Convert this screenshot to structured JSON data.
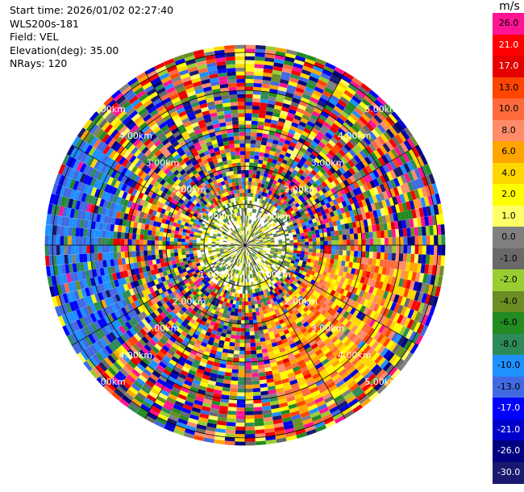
{
  "info": {
    "start_time": "Start time: 2026/01/02 02:27:40",
    "instrument": "WLS200s-181",
    "field": "Field: VEL",
    "elevation": "Elevation(deg): 35.00",
    "nrays": "NRays: 120"
  },
  "chart_data": {
    "type": "heatmap",
    "projection": "polar-ppi",
    "rays": 120,
    "range_rings_km": [
      1,
      2,
      3,
      4,
      5
    ],
    "range_ring_labels": [
      "1.00km",
      "2.00km",
      "3.00km",
      "4.00km",
      "5.00km"
    ],
    "colorbar": {
      "unit": "m/s",
      "bins": [
        {
          "label": "26.0",
          "color": "#ff1493"
        },
        {
          "label": "21.0",
          "color": "#ff0000"
        },
        {
          "label": "17.0",
          "color": "#e60000"
        },
        {
          "label": "13.0",
          "color": "#ff4500"
        },
        {
          "label": "10.0",
          "color": "#ff6a3c"
        },
        {
          "label": "8.0",
          "color": "#ff8c69"
        },
        {
          "label": "6.0",
          "color": "#ffa500"
        },
        {
          "label": "4.0",
          "color": "#ffd700"
        },
        {
          "label": "2.0",
          "color": "#ffff00"
        },
        {
          "label": "1.0",
          "color": "#ffff66"
        },
        {
          "label": "0.0",
          "color": "#808080"
        },
        {
          "label": "-1.0",
          "color": "#696969"
        },
        {
          "label": "-2.0",
          "color": "#9acd32"
        },
        {
          "label": "-4.0",
          "color": "#6b8e23"
        },
        {
          "label": "-6.0",
          "color": "#228b22"
        },
        {
          "label": "-8.0",
          "color": "#2e8b57"
        },
        {
          "label": "-10.0",
          "color": "#1e90ff"
        },
        {
          "label": "-13.0",
          "color": "#4169e1"
        },
        {
          "label": "-17.0",
          "color": "#0000ff"
        },
        {
          "label": "-21.0",
          "color": "#0000cd"
        },
        {
          "label": "-26.0",
          "color": "#000080"
        },
        {
          "label": "-30.0",
          "color": "#191970"
        }
      ]
    },
    "regions": [
      {
        "name": "inner-noise",
        "range_km": [
          0,
          1.2
        ],
        "dominant": "mixed green/yellow/gray"
      },
      {
        "name": "outer-noise",
        "range_km": [
          1.2,
          5.2
        ],
        "dominant": "random across all bins"
      },
      {
        "name": "southeast-positive-echo",
        "azimuth_deg": [
          95,
          165
        ],
        "range_km": [
          1.7,
          4.6
        ],
        "dominant": "orange/yellow (4 to 13 m/s)"
      },
      {
        "name": "west-negative-echo",
        "azimuth_deg": [
          230,
          300
        ],
        "range_km": [
          3.3,
          5.2
        ],
        "dominant": "blue (-10 to -13 m/s)"
      }
    ]
  }
}
